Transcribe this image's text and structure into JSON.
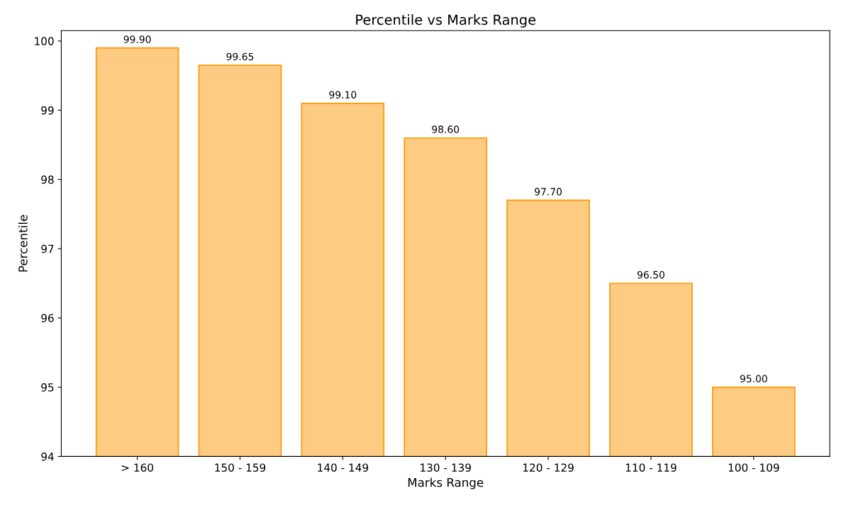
{
  "chart_data": {
    "type": "bar",
    "title": "Percentile vs Marks Range",
    "xlabel": "Marks Range",
    "ylabel": "Percentile",
    "categories": [
      "> 160",
      "150 - 159",
      "140 - 149",
      "130 - 139",
      "120 - 129",
      "110 - 119",
      "100 - 109"
    ],
    "series": [
      {
        "color": "#fdcb82",
        "values": [
          99.9,
          99.65,
          99.1,
          98.6,
          97.7,
          96.5,
          95.0
        ]
      }
    ],
    "value_labels": [
      "99.90",
      "99.65",
      "99.10",
      "98.60",
      "97.70",
      "96.50",
      "95.00"
    ],
    "ylim": [
      94,
      100.15
    ],
    "yticks": [
      94,
      95,
      96,
      97,
      98,
      99,
      100
    ],
    "grid": false,
    "legend": false
  }
}
